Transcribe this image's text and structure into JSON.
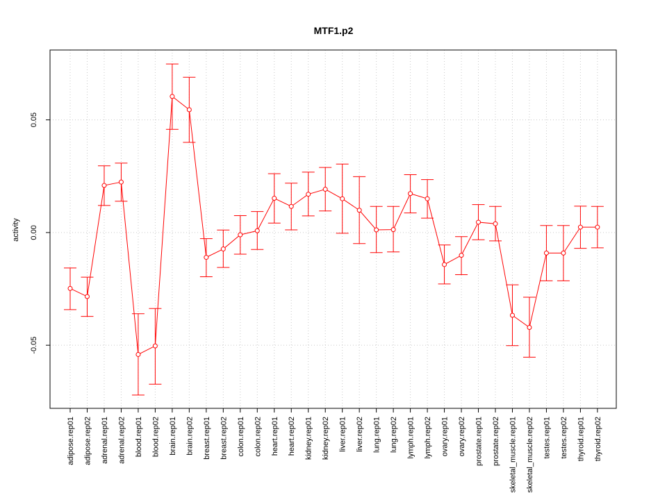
{
  "chart_data": {
    "type": "line",
    "title": "MTF1.p2",
    "xlabel": "",
    "ylabel": "activity",
    "ylim": [
      -0.078,
      0.081
    ],
    "y_ticks": [
      -0.05,
      0.0,
      0.05
    ],
    "y_tick_labels": [
      "-0.05",
      "0.00",
      "0.05"
    ],
    "grid": true,
    "colors": {
      "series": "#ff0000",
      "grid": "#c8c8c8",
      "axis": "#000000"
    },
    "categories": [
      "adipose.rep01",
      "adipose.rep02",
      "adrenal.rep01",
      "adrenal.rep02",
      "blood.rep01",
      "blood.rep02",
      "brain.rep01",
      "brain.rep02",
      "breast.rep01",
      "breast.rep02",
      "colon.rep01",
      "colon.rep02",
      "heart.rep01",
      "heart.rep02",
      "kidney.rep01",
      "kidney.rep02",
      "liver.rep01",
      "liver.rep02",
      "lung.rep01",
      "lung.rep02",
      "lymph.rep01",
      "lymph.rep02",
      "ovary.rep01",
      "ovary.rep02",
      "prostate.rep01",
      "prostate.rep02",
      "skeletal_muscle.rep01",
      "skeletal_muscle.rep02",
      "testes.rep01",
      "testes.rep02",
      "thyroid.rep01",
      "thyroid.rep02"
    ],
    "values": [
      -0.0248,
      -0.0284,
      0.0209,
      0.0224,
      -0.0541,
      -0.0503,
      0.0604,
      0.0545,
      -0.011,
      -0.0073,
      -0.001,
      0.0008,
      0.0152,
      0.0116,
      0.017,
      0.0192,
      0.015,
      0.0099,
      0.0012,
      0.0013,
      0.0173,
      0.015,
      -0.0142,
      -0.0101,
      0.0046,
      0.0039,
      -0.0367,
      -0.0421,
      -0.0091,
      -0.0091,
      0.0024,
      0.0024
    ],
    "err_upper": [
      -0.0157,
      -0.0198,
      0.0296,
      0.0308,
      -0.036,
      -0.0337,
      0.0748,
      0.0689,
      -0.0027,
      0.0011,
      0.0075,
      0.0093,
      0.0261,
      0.0219,
      0.0268,
      0.0289,
      0.0304,
      0.0248,
      0.0116,
      0.0116,
      0.0257,
      0.0235,
      -0.0055,
      -0.0018,
      0.0124,
      0.0116,
      -0.0232,
      -0.0287,
      0.0031,
      0.0031,
      0.0117,
      0.0116
    ],
    "err_lower": [
      -0.0342,
      -0.0372,
      0.012,
      0.0139,
      -0.0721,
      -0.0673,
      0.0458,
      0.04,
      -0.0196,
      -0.0155,
      -0.0096,
      -0.0075,
      0.0042,
      0.0012,
      0.0074,
      0.0096,
      -0.0003,
      -0.0049,
      -0.0089,
      -0.0086,
      0.0087,
      0.0064,
      -0.0228,
      -0.0187,
      -0.0032,
      -0.0037,
      -0.0502,
      -0.0553,
      -0.0214,
      -0.0214,
      -0.007,
      -0.0068
    ]
  }
}
